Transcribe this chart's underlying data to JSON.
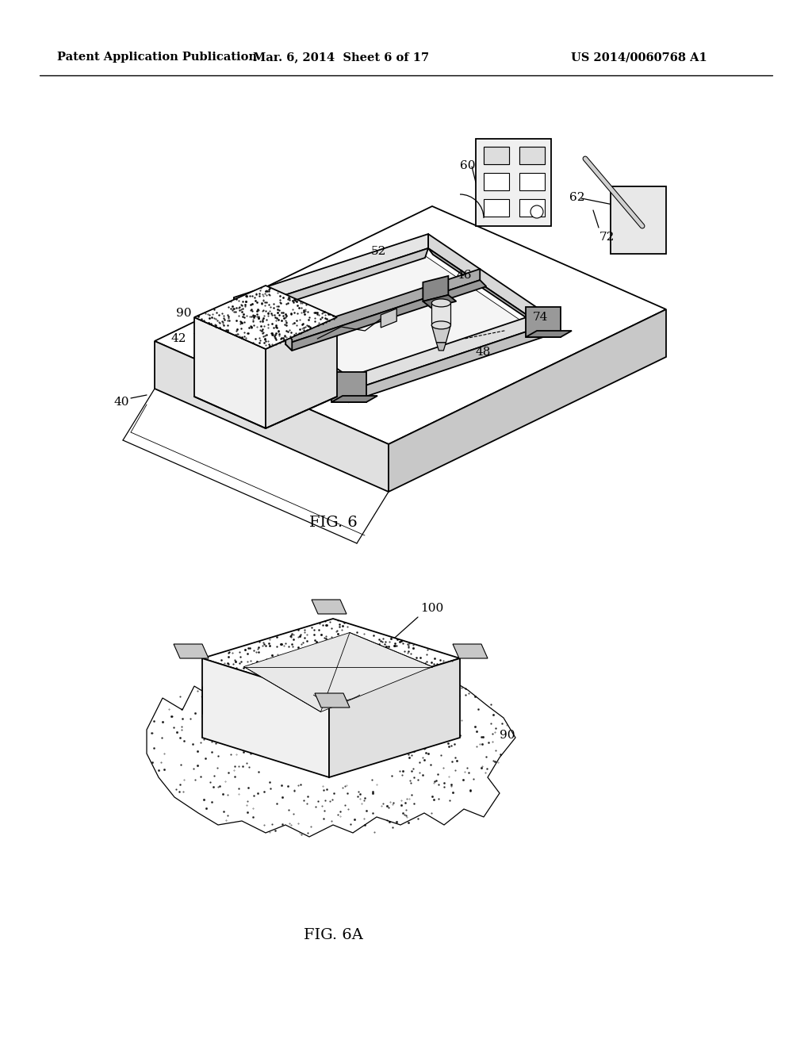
{
  "header_left": "Patent Application Publication",
  "header_middle": "Mar. 6, 2014  Sheet 6 of 17",
  "header_right": "US 2014/0060768 A1",
  "fig6_label": "FIG. 6",
  "fig6a_label": "FIG. 6A",
  "bg_color": "#ffffff",
  "line_color": "#000000",
  "header_fontsize": 10.5,
  "label_fontsize": 11,
  "caption_fontsize": 13
}
